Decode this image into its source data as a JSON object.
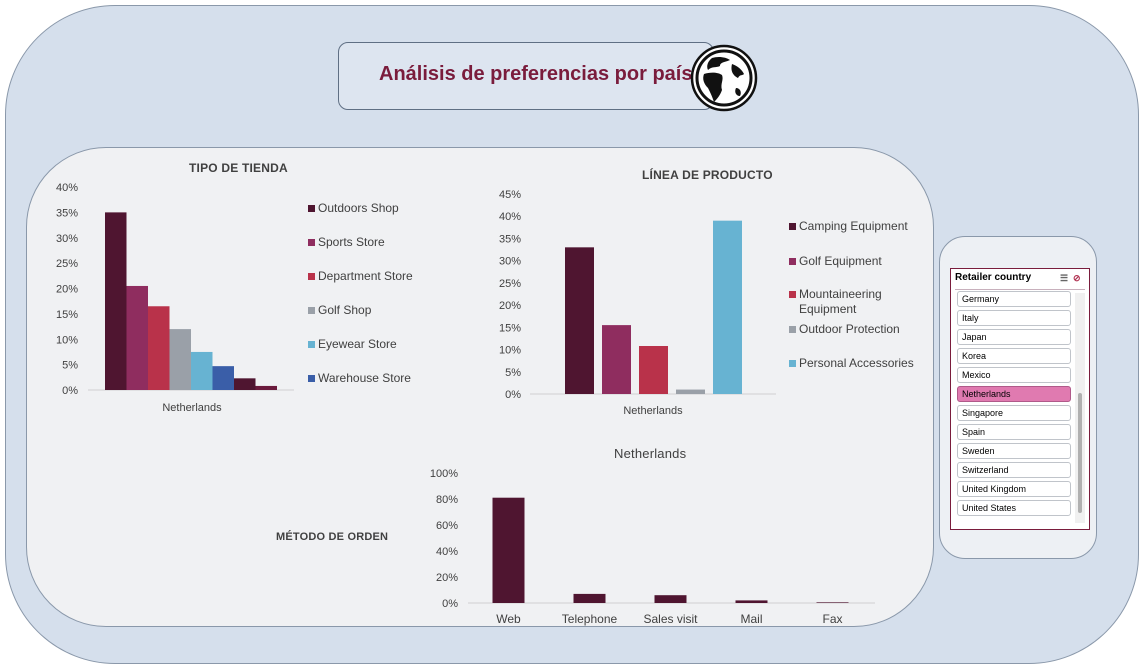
{
  "header": {
    "title": "Análisis de preferencias por país"
  },
  "icons": {
    "globe": "globe-icon",
    "multi_select": "multi-select-icon",
    "clear_filter": "clear-filter-icon"
  },
  "colors": {
    "title": "#7a1c3c",
    "series": [
      "#4f1530",
      "#8f2d5f",
      "#b9324a",
      "#9aa0a8",
      "#67b3d2",
      "#3a5ea8"
    ],
    "selected_item": "#e07ab0"
  },
  "slicer": {
    "header": "Retailer country",
    "items": [
      "Germany",
      "Italy",
      "Japan",
      "Korea",
      "Mexico",
      "Netherlands",
      "Singapore",
      "Spain",
      "Sweden",
      "Switzerland",
      "United Kingdom",
      "United States"
    ],
    "selected": "Netherlands"
  },
  "chart_data": [
    {
      "type": "bar",
      "title": "TIPO DE TIENDA",
      "categories": [
        "Netherlands"
      ],
      "series": [
        {
          "name": "Outdoors Shop",
          "values": [
            35
          ]
        },
        {
          "name": "Sports Store",
          "values": [
            20.5
          ]
        },
        {
          "name": "Department Store",
          "values": [
            16.5
          ]
        },
        {
          "name": "Golf Shop",
          "values": [
            12
          ]
        },
        {
          "name": "Eyewear Store",
          "values": [
            7.5
          ]
        },
        {
          "name": "Warehouse Store",
          "values": [
            4.7
          ]
        },
        {
          "name": "",
          "values": [
            2.3
          ]
        },
        {
          "name": "",
          "values": [
            0.8
          ]
        }
      ],
      "yticks": [
        "40%",
        "35%",
        "30%",
        "25%",
        "20%",
        "15%",
        "10%",
        "5%",
        "0%"
      ],
      "ylim": [
        0,
        40
      ],
      "legend": "right"
    },
    {
      "type": "bar",
      "title": "LÍNEA DE PRODUCTO",
      "categories": [
        "Netherlands"
      ],
      "series": [
        {
          "name": "Camping Equipment",
          "values": [
            33
          ]
        },
        {
          "name": "Golf Equipment",
          "values": [
            15.5
          ]
        },
        {
          "name": "Mountaineering Equipment",
          "values": [
            10.8
          ]
        },
        {
          "name": "Outdoor Protection",
          "values": [
            1
          ]
        },
        {
          "name": "Personal Accessories",
          "values": [
            39
          ]
        }
      ],
      "yticks": [
        "45%",
        "40%",
        "35%",
        "30%",
        "25%",
        "20%",
        "15%",
        "10%",
        "5%",
        "0%"
      ],
      "ylim": [
        0,
        45
      ],
      "legend": "right"
    },
    {
      "type": "bar",
      "title": "Netherlands",
      "side_label": "MÉTODO DE ORDEN",
      "categories": [
        "Web",
        "Telephone",
        "Sales visit",
        "Mail",
        "Fax"
      ],
      "values": [
        81,
        7,
        6,
        2,
        0.5
      ],
      "yticks": [
        "100%",
        "80%",
        "60%",
        "40%",
        "20%",
        "0%"
      ],
      "ylim": [
        0,
        100
      ]
    }
  ]
}
